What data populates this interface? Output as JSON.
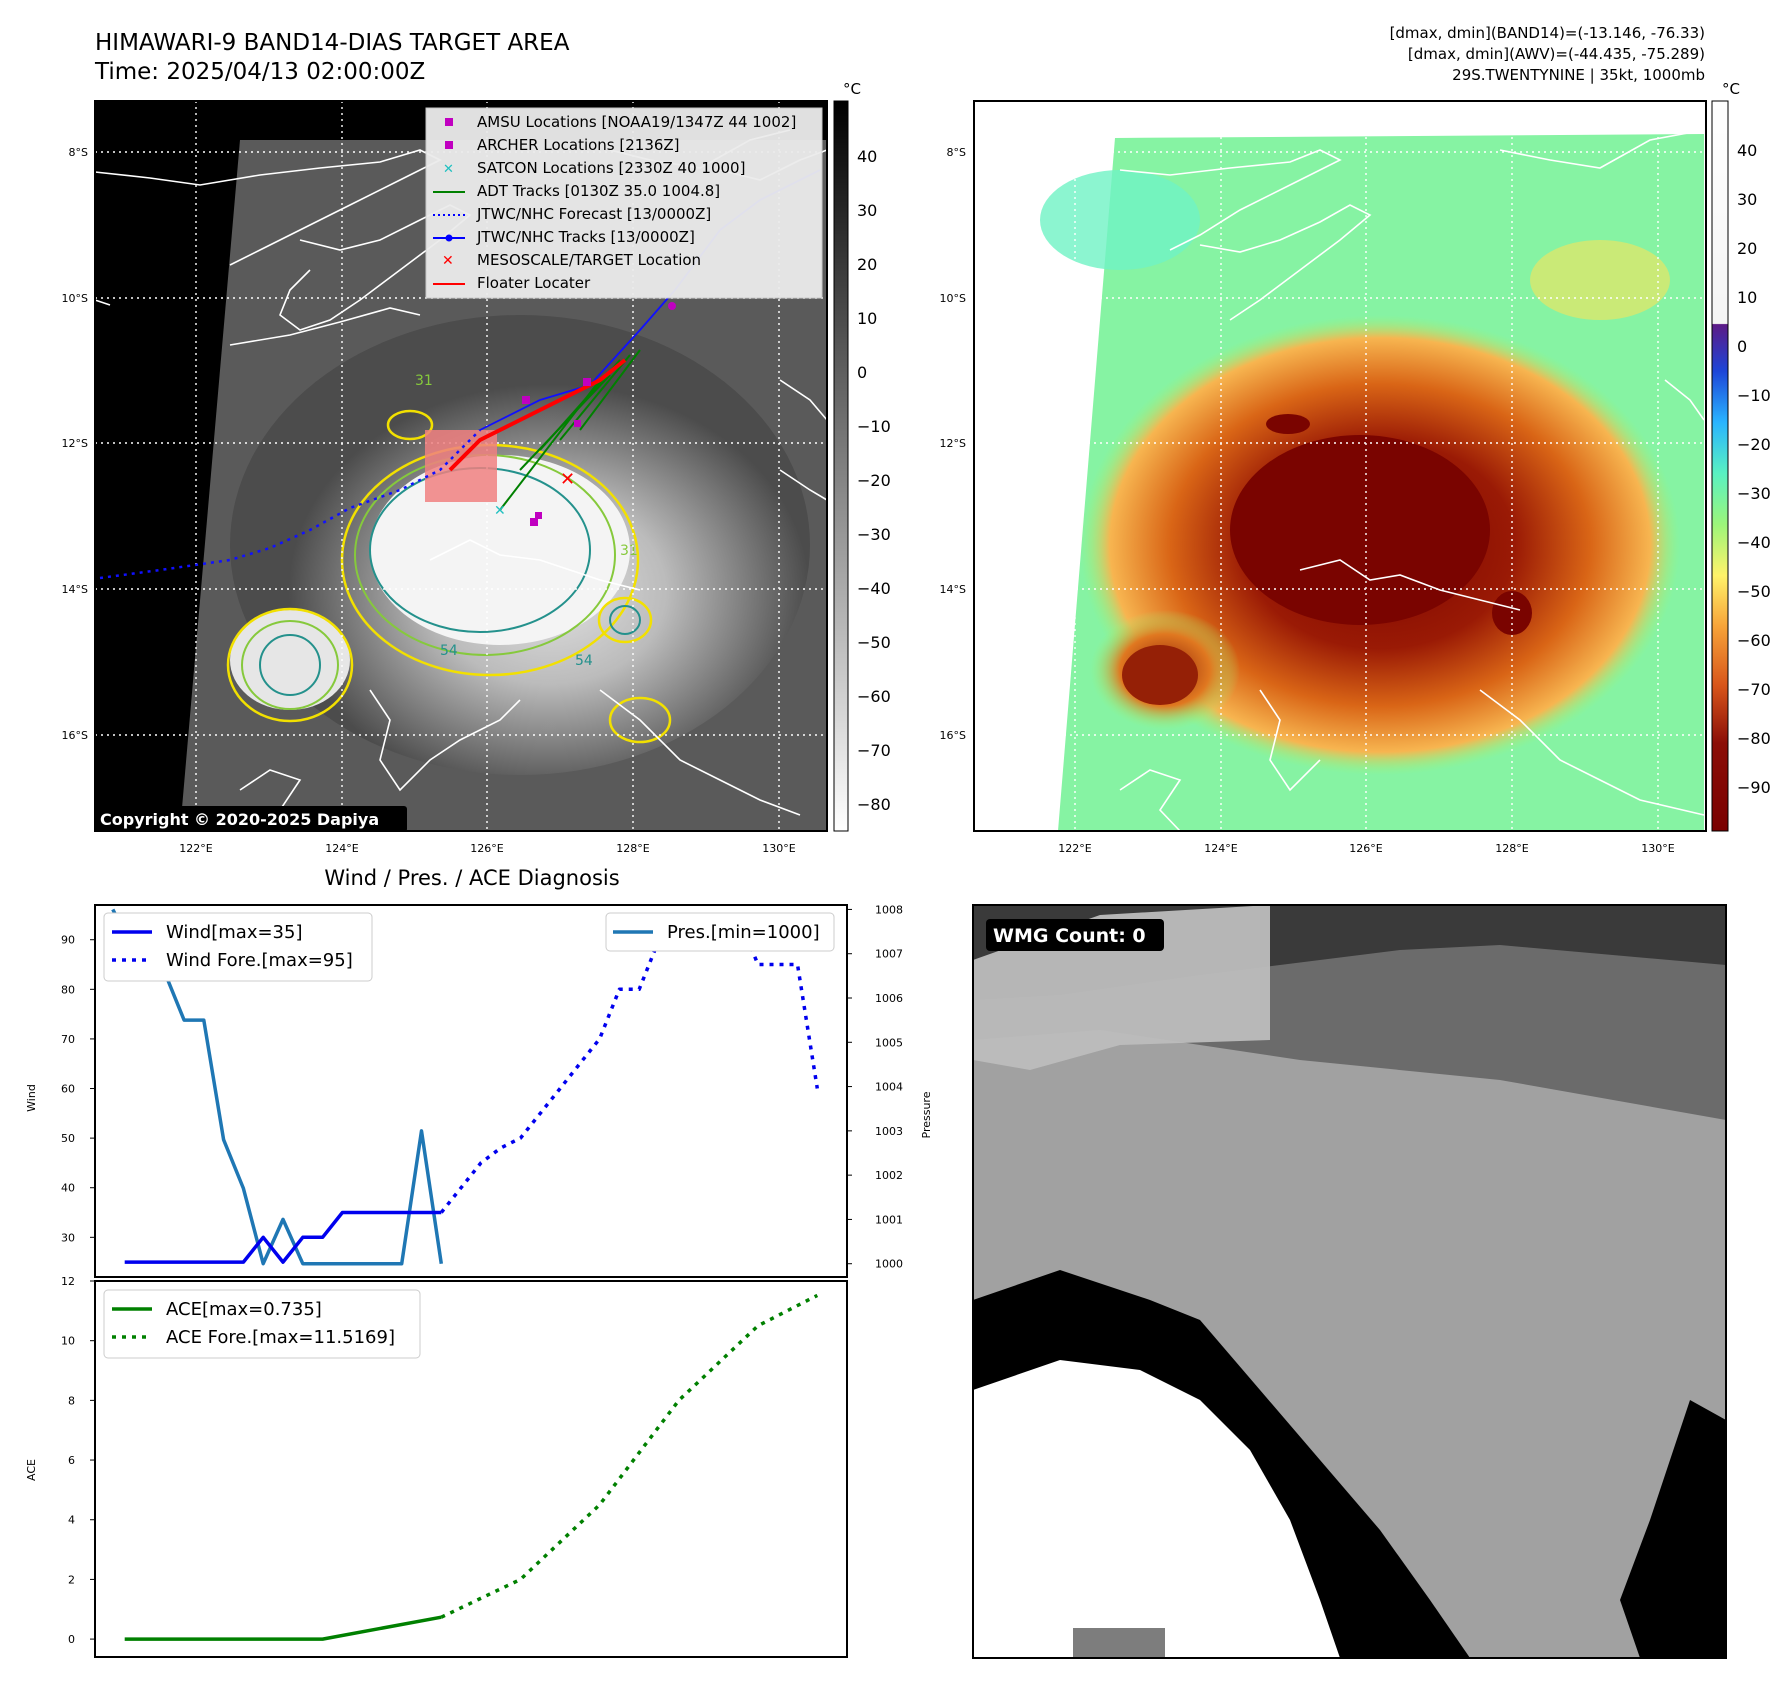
{
  "panel1": {
    "title_line1": "HIMAWARI-9 BAND14-DIAS TARGET AREA",
    "title_line2": "Time: 2025/04/13 02:00:00Z",
    "copyright": "Copyright © 2020-2025 Dapiya",
    "lat_labels": [
      "8°S",
      "10°S",
      "12°S",
      "14°S",
      "16°S"
    ],
    "lon_labels": [
      "122°E",
      "124°E",
      "126°E",
      "128°E",
      "130°E"
    ],
    "legend": [
      {
        "label": "AMSU Locations [NOAA19/1347Z 44 1002]",
        "color": "#c000c0",
        "marker": "square"
      },
      {
        "label": "ARCHER Locations [2136Z]",
        "color": "#c000c0",
        "marker": "square"
      },
      {
        "label": "SATCON Locations [2330Z 40 1000]",
        "color": "#20c0c0",
        "marker": "x"
      },
      {
        "label": "ADT Tracks [0130Z 35.0 1004.8]",
        "color": "#008000",
        "marker": "line"
      },
      {
        "label": "JTWC/NHC Forecast [13/0000Z]",
        "color": "#0000ff",
        "marker": "dotted"
      },
      {
        "label": "JTWC/NHC Tracks [13/0000Z]",
        "color": "#0000ff",
        "marker": "line-dot"
      },
      {
        "label": "MESOSCALE/TARGET Location",
        "color": "#ff0000",
        "marker": "x"
      },
      {
        "label": "Floater Locater",
        "color": "#ff0000",
        "marker": "line"
      }
    ],
    "colorbar_unit": "°C",
    "colorbar_ticks": [
      "40",
      "30",
      "20",
      "10",
      "0",
      "−10",
      "−20",
      "−30",
      "−40",
      "−50",
      "−60",
      "−70",
      "−80"
    ],
    "contour_labels": [
      "31",
      "54",
      "54",
      "31"
    ]
  },
  "panel2": {
    "header_line1": "[dmax, dmin](BAND14)=(-13.146, -76.33)",
    "header_line2": "[dmax, dmin](AWV)=(-44.435, -75.289)",
    "header_line3": "29S.TWENTYNINE | 35kt, 1000mb",
    "lat_labels": [
      "8°S",
      "10°S",
      "12°S",
      "14°S",
      "16°S"
    ],
    "lon_labels": [
      "122°E",
      "124°E",
      "126°E",
      "128°E",
      "130°E"
    ],
    "colorbar_unit": "°C",
    "colorbar_ticks": [
      "40",
      "30",
      "20",
      "10",
      "0",
      "−10",
      "−20",
      "−30",
      "−40",
      "−50",
      "−60",
      "−70",
      "−80",
      "−90"
    ]
  },
  "panel3": {
    "title": "Wind / Pres. / ACE Diagnosis",
    "ylabel_wind": "Wind",
    "ylabel_pressure": "Pressure",
    "ylabel_ace": "ACE",
    "wind_ticks": [
      "30",
      "40",
      "50",
      "60",
      "70",
      "80",
      "90"
    ],
    "pressure_ticks": [
      "1000",
      "1001",
      "1002",
      "1003",
      "1004",
      "1005",
      "1006",
      "1007",
      "1008"
    ],
    "ace_ticks": [
      "0",
      "2",
      "4",
      "6",
      "8",
      "10",
      "12"
    ],
    "legend_wind": "Wind[max=35]",
    "legend_wind_fore": "Wind Fore.[max=95]",
    "legend_pres": "Pres.[min=1000]",
    "legend_ace": "ACE[max=0.735]",
    "legend_ace_fore": "ACE Fore.[max=11.5169]"
  },
  "panel4": {
    "badge": "WMG Count: 0"
  },
  "chart_data": [
    {
      "type": "line",
      "title": "Wind / Pres. / ACE Diagnosis",
      "ylabel": "Wind",
      "ylim": [
        22,
        97
      ],
      "series": [
        {
          "name": "Wind[max=35]",
          "style": "solid",
          "color": "#0000ee",
          "x": [
            0,
            1,
            2,
            3,
            4,
            5,
            6,
            7,
            8,
            9,
            10,
            11,
            12,
            13,
            14,
            15,
            16
          ],
          "values": [
            25,
            25,
            25,
            25,
            25,
            25,
            25,
            30,
            25,
            30,
            30,
            35,
            35,
            35,
            35,
            35,
            35
          ]
        },
        {
          "name": "Wind Fore.[max=95]",
          "style": "dotted",
          "color": "#0000ee",
          "x": [
            16,
            17,
            18,
            19,
            20,
            21,
            22,
            23,
            24,
            25,
            26,
            27,
            28,
            29,
            30,
            31,
            32,
            33,
            34,
            35
          ],
          "values": [
            35,
            40,
            45,
            48,
            50,
            55,
            60,
            65,
            70,
            80,
            80,
            90,
            95,
            95,
            95,
            95,
            85,
            85,
            85,
            60
          ]
        }
      ]
    },
    {
      "type": "line",
      "ylabel": "Pressure",
      "ylim": [
        999.7,
        1008.1
      ],
      "series": [
        {
          "name": "Pres.[min=1000]",
          "style": "solid",
          "color": "#1f77b4",
          "x": [
            -0.6,
            1,
            2,
            3,
            4,
            5,
            6,
            7,
            8,
            9,
            10,
            11,
            12,
            13,
            14,
            15,
            16
          ],
          "values": [
            1008,
            1006.6,
            1006.6,
            1005.5,
            1005.5,
            1002.8,
            1001.7,
            1000,
            1001,
            1000,
            1000,
            1000,
            1000,
            1000,
            1000,
            1003,
            1000
          ]
        }
      ]
    },
    {
      "type": "line",
      "ylabel": "ACE",
      "ylim": [
        -0.6,
        12
      ],
      "series": [
        {
          "name": "ACE[max=0.735]",
          "style": "solid",
          "color": "#008000",
          "x": [
            0,
            10,
            16
          ],
          "values": [
            0,
            0,
            0.735
          ]
        },
        {
          "name": "ACE Fore.[max=11.5169]",
          "style": "dotted",
          "color": "#008000",
          "x": [
            16,
            20,
            24,
            28,
            32,
            35
          ],
          "values": [
            0.735,
            2.0,
            4.5,
            8.0,
            10.5,
            11.5169
          ]
        }
      ]
    }
  ]
}
